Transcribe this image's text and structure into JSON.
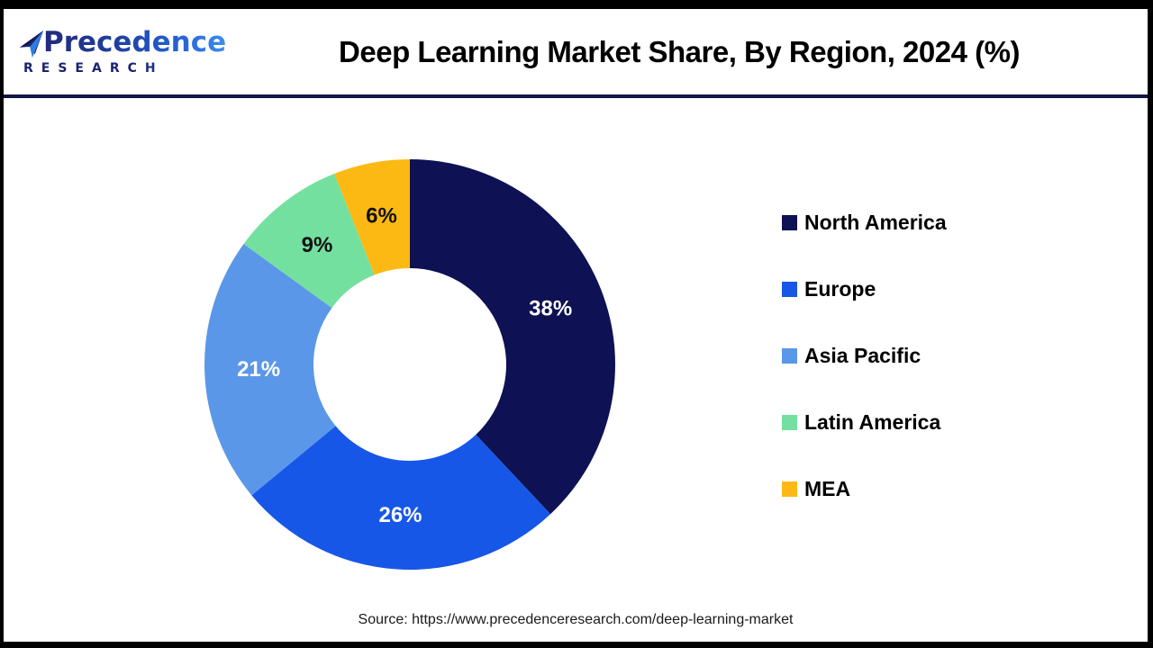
{
  "header": {
    "logo": {
      "line1": "Precedence",
      "line2": "RESEARCH"
    },
    "title": "Deep Learning Market Share, By Region, 2024 (%)"
  },
  "chart_data": {
    "type": "pie",
    "subtype": "donut",
    "title": "Deep Learning Market Share, By Region, 2024 (%)",
    "start_angle_deg": 0,
    "direction": "clockwise",
    "inner_radius_ratio": 0.47,
    "legend_position": "right",
    "series": [
      {
        "name": "North America",
        "value": 38,
        "label": "38%",
        "color": "#0e1153",
        "label_color": "#ffffff"
      },
      {
        "name": "Europe",
        "value": 26,
        "label": "26%",
        "color": "#1757e8",
        "label_color": "#ffffff"
      },
      {
        "name": "Asia Pacific",
        "value": 21,
        "label": "21%",
        "color": "#5b97e8",
        "label_color": "#ffffff"
      },
      {
        "name": "Latin America",
        "value": 9,
        "label": "9%",
        "color": "#74e0a0",
        "label_color": "#111111"
      },
      {
        "name": "MEA",
        "value": 6,
        "label": "6%",
        "color": "#fdb913",
        "label_color": "#111111"
      }
    ]
  },
  "footer": {
    "source": "Source: https://www.precedenceresearch.com/deep-learning-market"
  },
  "colors": {
    "frame": "#000000",
    "header_separator": "#10164a",
    "background": "#ffffff"
  }
}
